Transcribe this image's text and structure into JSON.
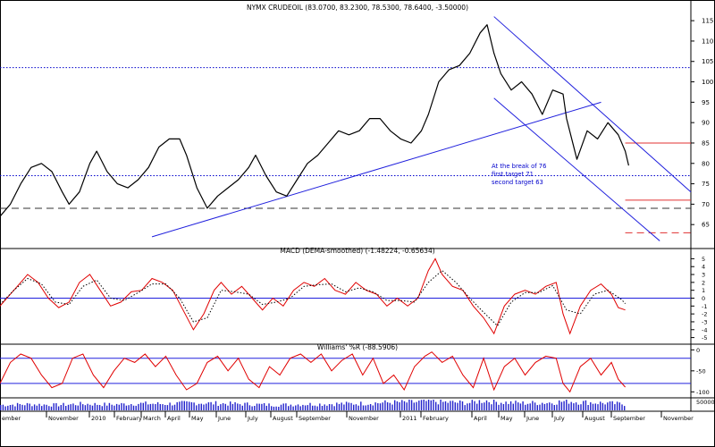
{
  "price_panel": {
    "title": "NYMX CRUDEOIL (83.0700, 83.2300, 78.5300, 78.6400, -3.50000)",
    "annotation_lines": [
      "At the break of 76",
      "first target 71",
      "second target 63"
    ]
  },
  "macd_panel": {
    "title": "MACD (DEMA-smoothed) (-1.48224, -0.65634)"
  },
  "williams_panel": {
    "title": "Williams' %R (-88.5906)"
  },
  "x_axis_labels": [
    "ember",
    "November",
    "2010",
    "February",
    "March",
    "April",
    "May",
    "June",
    "July",
    "August",
    "September",
    "November",
    "2011",
    "February",
    "April",
    "May",
    "June",
    "July",
    "August",
    "September",
    "November"
  ],
  "chart_data": [
    {
      "type": "line",
      "name": "price",
      "title": "NYMX CRUDEOIL (83.0700, 83.2300, 78.5300, 78.6400, -3.50000)",
      "ylim": [
        60,
        117
      ],
      "yticks": [
        65,
        70,
        75,
        80,
        85,
        90,
        95,
        100,
        105,
        110,
        115
      ],
      "x_range": [
        0,
        100
      ],
      "close": [
        [
          0,
          67
        ],
        [
          1.5,
          70
        ],
        [
          3,
          75
        ],
        [
          4.5,
          79
        ],
        [
          6,
          80
        ],
        [
          7.5,
          78
        ],
        [
          9,
          73
        ],
        [
          10,
          70
        ],
        [
          11.5,
          73
        ],
        [
          13,
          80
        ],
        [
          14,
          83
        ],
        [
          15.5,
          78
        ],
        [
          17,
          75
        ],
        [
          18.5,
          74
        ],
        [
          20,
          76
        ],
        [
          21.5,
          79
        ],
        [
          23,
          84
        ],
        [
          24.5,
          86
        ],
        [
          26,
          86
        ],
        [
          27,
          82
        ],
        [
          28.5,
          74
        ],
        [
          30,
          69
        ],
        [
          31.5,
          72
        ],
        [
          33,
          74
        ],
        [
          34.5,
          76
        ],
        [
          36,
          79
        ],
        [
          37,
          82
        ],
        [
          38.5,
          77
        ],
        [
          40,
          73
        ],
        [
          41.5,
          72
        ],
        [
          43,
          76
        ],
        [
          44.5,
          80
        ],
        [
          46,
          82
        ],
        [
          47.5,
          85
        ],
        [
          49,
          88
        ],
        [
          50.5,
          87
        ],
        [
          52,
          88
        ],
        [
          53.5,
          91
        ],
        [
          55,
          91
        ],
        [
          56.5,
          88
        ],
        [
          58,
          86
        ],
        [
          59.5,
          85
        ],
        [
          61,
          88
        ],
        [
          62,
          92
        ],
        [
          63.5,
          100
        ],
        [
          65,
          103
        ],
        [
          66.5,
          104
        ],
        [
          68,
          107
        ],
        [
          69.5,
          112
        ],
        [
          70.5,
          114
        ],
        [
          71.5,
          107
        ],
        [
          72.5,
          102
        ],
        [
          74,
          98
        ],
        [
          75.5,
          100
        ],
        [
          77,
          97
        ],
        [
          78.5,
          92
        ],
        [
          80,
          98
        ],
        [
          81.5,
          97
        ],
        [
          82,
          91
        ],
        [
          83.5,
          81
        ],
        [
          85,
          88
        ],
        [
          86.5,
          86
        ],
        [
          88,
          90
        ],
        [
          89.5,
          87
        ],
        [
          90.5,
          83
        ],
        [
          91,
          79.5
        ]
      ],
      "channel_upper": [
        [
          71.5,
          116
        ],
        [
          100,
          73
        ]
      ],
      "channel_lower": [
        [
          71.5,
          96
        ],
        [
          95.5,
          61
        ]
      ],
      "trendline": [
        [
          22,
          62
        ],
        [
          87,
          95
        ]
      ],
      "hlines": [
        {
          "y": 103.5,
          "style": "dotted",
          "color": "#0000cc",
          "from": 0,
          "to": 100
        },
        {
          "y": 77,
          "style": "dotted",
          "color": "#0000cc",
          "from": 0,
          "to": 100
        },
        {
          "y": 69,
          "style": "dashed",
          "color": "#333333",
          "from": 0,
          "to": 100
        },
        {
          "y": 85,
          "style": "solid",
          "color": "#e03030",
          "from": 90.5,
          "to": 100
        },
        {
          "y": 71,
          "style": "solid",
          "color": "#e03030",
          "from": 90.5,
          "to": 100
        },
        {
          "y": 63,
          "style": "dashed",
          "color": "#e03030",
          "from": 90.5,
          "to": 100
        }
      ]
    },
    {
      "type": "line",
      "name": "macd",
      "title": "MACD (DEMA-smoothed) (-1.48224, -0.65634)",
      "ylim": [
        -5.5,
        5.5
      ],
      "yticks": [
        5,
        4,
        3,
        2,
        1,
        0,
        -1,
        -2,
        -3,
        -4,
        -5
      ],
      "x_range": [
        0,
        100
      ],
      "zero_line": 0,
      "series": [
        {
          "name": "MACD",
          "color": "#e00000",
          "values": [
            [
              0,
              -1
            ],
            [
              1.5,
              0.5
            ],
            [
              3,
              2
            ],
            [
              4,
              3
            ],
            [
              5.5,
              2
            ],
            [
              7,
              0
            ],
            [
              8.5,
              -1.2
            ],
            [
              10,
              -0.5
            ],
            [
              11.5,
              2
            ],
            [
              13,
              3
            ],
            [
              14.5,
              1
            ],
            [
              16,
              -1
            ],
            [
              17.5,
              -0.5
            ],
            [
              19,
              0.8
            ],
            [
              20.5,
              1
            ],
            [
              22,
              2.5
            ],
            [
              23.5,
              2
            ],
            [
              25,
              1
            ],
            [
              26.5,
              -1.5
            ],
            [
              28,
              -4
            ],
            [
              29.5,
              -2
            ],
            [
              31,
              1
            ],
            [
              32,
              2
            ],
            [
              33.5,
              0.5
            ],
            [
              35,
              1.5
            ],
            [
              36.5,
              0
            ],
            [
              38,
              -1.5
            ],
            [
              39.5,
              0
            ],
            [
              41,
              -1
            ],
            [
              42.5,
              1
            ],
            [
              44,
              2
            ],
            [
              45.5,
              1.5
            ],
            [
              47,
              2.5
            ],
            [
              48.5,
              1
            ],
            [
              50,
              0.5
            ],
            [
              51.5,
              2
            ],
            [
              53,
              1
            ],
            [
              54.5,
              0.5
            ],
            [
              56,
              -1
            ],
            [
              57.5,
              0
            ],
            [
              59,
              -1
            ],
            [
              60.5,
              0
            ],
            [
              62,
              3.5
            ],
            [
              63,
              5
            ],
            [
              64,
              3
            ],
            [
              65.5,
              1.5
            ],
            [
              67,
              1
            ],
            [
              68.5,
              -1
            ],
            [
              70,
              -2.5
            ],
            [
              71.5,
              -4.5
            ],
            [
              73,
              -1
            ],
            [
              74.5,
              0.5
            ],
            [
              76,
              1
            ],
            [
              77.5,
              0.5
            ],
            [
              79,
              1.5
            ],
            [
              80.5,
              2
            ],
            [
              81.5,
              -2
            ],
            [
              82.5,
              -4.5
            ],
            [
              84,
              -1
            ],
            [
              85.5,
              1
            ],
            [
              87,
              1.8
            ],
            [
              88.5,
              0.5
            ],
            [
              89.5,
              -1.2
            ],
            [
              90.5,
              -1.5
            ]
          ]
        },
        {
          "name": "Signal",
          "color": "#000000",
          "style": "dotted",
          "values": [
            [
              0,
              -0.8
            ],
            [
              2,
              1
            ],
            [
              4,
              2.5
            ],
            [
              6,
              1.8
            ],
            [
              8,
              -0.5
            ],
            [
              10,
              -0.8
            ],
            [
              12,
              1.5
            ],
            [
              14,
              2.3
            ],
            [
              16,
              0
            ],
            [
              18,
              -0.3
            ],
            [
              20,
              0.7
            ],
            [
              22,
              1.8
            ],
            [
              24,
              1.8
            ],
            [
              26,
              0
            ],
            [
              28,
              -3
            ],
            [
              30,
              -2.5
            ],
            [
              32,
              1
            ],
            [
              34,
              0.8
            ],
            [
              36,
              0.5
            ],
            [
              38,
              -0.8
            ],
            [
              40,
              -0.5
            ],
            [
              42,
              0
            ],
            [
              44,
              1.5
            ],
            [
              46,
              1.7
            ],
            [
              48,
              1.8
            ],
            [
              50,
              0.8
            ],
            [
              52,
              1.3
            ],
            [
              54,
              0.8
            ],
            [
              56,
              -0.3
            ],
            [
              58,
              -0.3
            ],
            [
              60,
              -0.5
            ],
            [
              62,
              2
            ],
            [
              64,
              3.5
            ],
            [
              66,
              2
            ],
            [
              68,
              0
            ],
            [
              70,
              -1.8
            ],
            [
              72,
              -3.5
            ],
            [
              74,
              -0.5
            ],
            [
              76,
              0.7
            ],
            [
              78,
              0.7
            ],
            [
              80,
              1.6
            ],
            [
              82,
              -1.5
            ],
            [
              84,
              -2
            ],
            [
              86,
              0.5
            ],
            [
              88,
              1
            ],
            [
              90,
              -0.2
            ],
            [
              90.5,
              -0.7
            ]
          ]
        }
      ]
    },
    {
      "type": "line",
      "name": "williams_r",
      "title": "Williams' %R (-88.5906)",
      "ylim": [
        -110,
        5
      ],
      "yticks": [
        0,
        -50,
        -100
      ],
      "hlines": [
        -20,
        -80
      ],
      "x_range": [
        0,
        100
      ],
      "series": [
        {
          "name": "%R",
          "color": "#e00000",
          "values": [
            [
              0,
              -80
            ],
            [
              1.5,
              -30
            ],
            [
              3,
              -10
            ],
            [
              4.5,
              -20
            ],
            [
              6,
              -60
            ],
            [
              7.5,
              -90
            ],
            [
              9,
              -80
            ],
            [
              10.5,
              -20
            ],
            [
              12,
              -10
            ],
            [
              13.5,
              -60
            ],
            [
              15,
              -90
            ],
            [
              16.5,
              -50
            ],
            [
              18,
              -20
            ],
            [
              19.5,
              -30
            ],
            [
              21,
              -10
            ],
            [
              22.5,
              -40
            ],
            [
              24,
              -15
            ],
            [
              25.5,
              -60
            ],
            [
              27,
              -95
            ],
            [
              28.5,
              -80
            ],
            [
              30,
              -30
            ],
            [
              31.5,
              -15
            ],
            [
              33,
              -50
            ],
            [
              34.5,
              -20
            ],
            [
              36,
              -70
            ],
            [
              37.5,
              -90
            ],
            [
              39,
              -40
            ],
            [
              40.5,
              -60
            ],
            [
              42,
              -20
            ],
            [
              43.5,
              -10
            ],
            [
              45,
              -30
            ],
            [
              46.5,
              -10
            ],
            [
              48,
              -50
            ],
            [
              49.5,
              -25
            ],
            [
              51,
              -10
            ],
            [
              52.5,
              -60
            ],
            [
              54,
              -20
            ],
            [
              55.5,
              -80
            ],
            [
              57,
              -60
            ],
            [
              58.5,
              -95
            ],
            [
              60,
              -40
            ],
            [
              61.5,
              -15
            ],
            [
              62.5,
              -5
            ],
            [
              64,
              -30
            ],
            [
              65.5,
              -15
            ],
            [
              67,
              -60
            ],
            [
              68.5,
              -90
            ],
            [
              70,
              -20
            ],
            [
              71.5,
              -95
            ],
            [
              73,
              -40
            ],
            [
              74.5,
              -20
            ],
            [
              76,
              -60
            ],
            [
              77.5,
              -30
            ],
            [
              79,
              -15
            ],
            [
              80.5,
              -20
            ],
            [
              81.5,
              -80
            ],
            [
              82.5,
              -100
            ],
            [
              84,
              -40
            ],
            [
              85.5,
              -20
            ],
            [
              87,
              -60
            ],
            [
              88.5,
              -30
            ],
            [
              89.5,
              -70
            ],
            [
              90.5,
              -88.6
            ]
          ]
        }
      ]
    },
    {
      "type": "bar",
      "name": "volume",
      "yticks": [
        50000
      ],
      "x_range": [
        0,
        100
      ],
      "values": [
        [
          0,
          30000
        ],
        [
          4,
          34000
        ],
        [
          8,
          30000
        ],
        [
          12,
          36000
        ],
        [
          16,
          32000
        ],
        [
          20,
          38000
        ],
        [
          24,
          36000
        ],
        [
          28,
          42000
        ],
        [
          32,
          38000
        ],
        [
          36,
          34000
        ],
        [
          40,
          30000
        ],
        [
          44,
          34000
        ],
        [
          48,
          36000
        ],
        [
          52,
          38000
        ],
        [
          56,
          44000
        ],
        [
          60,
          46000
        ],
        [
          62,
          52000
        ],
        [
          64,
          46000
        ],
        [
          68,
          42000
        ],
        [
          70,
          56000
        ],
        [
          72,
          46000
        ],
        [
          76,
          40000
        ],
        [
          80,
          44000
        ],
        [
          82,
          52000
        ],
        [
          84,
          46000
        ],
        [
          88,
          40000
        ],
        [
          90.5,
          34000
        ]
      ]
    }
  ]
}
